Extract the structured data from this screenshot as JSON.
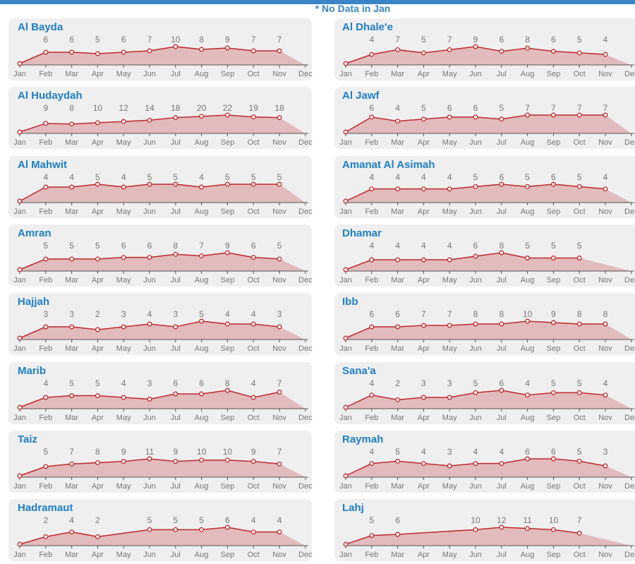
{
  "note": "* No Data in Jan",
  "colors": {
    "title": "#1f7fc8",
    "line": "#c0282c",
    "area": "#dfb2b4",
    "marker_fill": "#ffffff",
    "panel": "#efefef",
    "axis": "#555555"
  },
  "chart_data": [
    {
      "type": "area",
      "title": "Al Bayda",
      "categories": [
        "Jan",
        "Feb",
        "Mar",
        "Apr",
        "May",
        "Jun",
        "Jul",
        "Aug",
        "Sep",
        "Oct",
        "Nov",
        "Dec"
      ],
      "values": [
        null,
        6,
        6,
        5,
        6,
        7,
        10,
        8,
        9,
        7,
        7,
        null
      ]
    },
    {
      "type": "area",
      "title": "Al Dhale'e",
      "categories": [
        "Jan",
        "Feb",
        "Mar",
        "Apr",
        "May",
        "Jun",
        "Jul",
        "Aug",
        "Sep",
        "Oct",
        "Nov",
        "Dec"
      ],
      "values": [
        null,
        4,
        7,
        5,
        7,
        9,
        6,
        8,
        6,
        5,
        4,
        null
      ]
    },
    {
      "type": "area",
      "title": "Al Hudaydah",
      "categories": [
        "Jan",
        "Feb",
        "Mar",
        "Apr",
        "May",
        "Jun",
        "Jul",
        "Aug",
        "Sep",
        "Oct",
        "Nov",
        "Dec"
      ],
      "values": [
        null,
        9,
        8,
        10,
        12,
        14,
        18,
        20,
        22,
        19,
        18,
        null
      ]
    },
    {
      "type": "area",
      "title": "Al Jawf",
      "categories": [
        "Jan",
        "Feb",
        "Mar",
        "Apr",
        "May",
        "Jun",
        "Jul",
        "Aug",
        "Sep",
        "Oct",
        "Nov",
        "Dec"
      ],
      "values": [
        null,
        6,
        4,
        5,
        6,
        6,
        5,
        7,
        7,
        7,
        7,
        null
      ]
    },
    {
      "type": "area",
      "title": "Al Mahwit",
      "categories": [
        "Jan",
        "Feb",
        "Mar",
        "Apr",
        "May",
        "Jun",
        "Jul",
        "Aug",
        "Sep",
        "Oct",
        "Nov",
        "Dec"
      ],
      "values": [
        null,
        4,
        4,
        5,
        4,
        5,
        5,
        4,
        5,
        5,
        5,
        null
      ]
    },
    {
      "type": "area",
      "title": "Amanat Al Asimah",
      "categories": [
        "Jan",
        "Feb",
        "Mar",
        "Apr",
        "May",
        "Jun",
        "Jul",
        "Aug",
        "Sep",
        "Oct",
        "Nov",
        "Dec"
      ],
      "values": [
        null,
        4,
        4,
        4,
        4,
        5,
        6,
        5,
        6,
        5,
        4,
        null
      ]
    },
    {
      "type": "area",
      "title": "Amran",
      "categories": [
        "Jan",
        "Feb",
        "Mar",
        "Apr",
        "May",
        "Jun",
        "Jul",
        "Aug",
        "Sep",
        "Oct",
        "Nov",
        "Dec"
      ],
      "values": [
        null,
        5,
        5,
        5,
        6,
        6,
        8,
        7,
        9,
        6,
        5,
        null
      ]
    },
    {
      "type": "area",
      "title": "Dhamar",
      "categories": [
        "Jan",
        "Feb",
        "Mar",
        "Apr",
        "May",
        "Jun",
        "Jul",
        "Aug",
        "Sep",
        "Oct",
        "Nov",
        "Dec"
      ],
      "values": [
        null,
        4,
        4,
        4,
        4,
        6,
        8,
        5,
        5,
        5,
        null,
        null
      ]
    },
    {
      "type": "area",
      "title": "Hajjah",
      "categories": [
        "Jan",
        "Feb",
        "Mar",
        "Apr",
        "May",
        "Jun",
        "Jul",
        "Aug",
        "Sep",
        "Oct",
        "Nov",
        "Dec"
      ],
      "values": [
        null,
        3,
        3,
        2,
        3,
        4,
        3,
        5,
        4,
        4,
        3,
        null
      ]
    },
    {
      "type": "area",
      "title": "Ibb",
      "categories": [
        "Jan",
        "Feb",
        "Mar",
        "Apr",
        "May",
        "Jun",
        "Jul",
        "Aug",
        "Sep",
        "Oct",
        "Nov",
        "Dec"
      ],
      "values": [
        null,
        6,
        6,
        7,
        7,
        8,
        8,
        10,
        9,
        8,
        8,
        null
      ]
    },
    {
      "type": "area",
      "title": "Marib",
      "categories": [
        "Jan",
        "Feb",
        "Mar",
        "Apr",
        "May",
        "Jun",
        "Jul",
        "Aug",
        "Sep",
        "Oct",
        "Nov",
        "Dec"
      ],
      "values": [
        null,
        4,
        5,
        5,
        4,
        3,
        6,
        6,
        8,
        4,
        7,
        null
      ]
    },
    {
      "type": "area",
      "title": "Sana'a",
      "categories": [
        "Jan",
        "Feb",
        "Mar",
        "Apr",
        "May",
        "Jun",
        "Jul",
        "Aug",
        "Sep",
        "Oct",
        "Nov",
        "Dec"
      ],
      "values": [
        null,
        4,
        2,
        3,
        3,
        5,
        6,
        4,
        5,
        5,
        4,
        null
      ]
    },
    {
      "type": "area",
      "title": "Taiz",
      "categories": [
        "Jan",
        "Feb",
        "Mar",
        "Apr",
        "May",
        "Jun",
        "Jul",
        "Aug",
        "Sep",
        "Oct",
        "Nov",
        "Dec"
      ],
      "values": [
        null,
        5,
        7,
        8,
        9,
        11,
        9,
        10,
        10,
        9,
        7,
        null
      ]
    },
    {
      "type": "area",
      "title": "Raymah",
      "categories": [
        "Jan",
        "Feb",
        "Mar",
        "Apr",
        "May",
        "Jun",
        "Jul",
        "Aug",
        "Sep",
        "Oct",
        "Nov",
        "Dec"
      ],
      "values": [
        null,
        4,
        5,
        4,
        3,
        4,
        4,
        6,
        6,
        5,
        3,
        null
      ]
    },
    {
      "type": "area",
      "title": "Hadramaut",
      "categories": [
        "Jan",
        "Feb",
        "Mar",
        "Apr",
        "May",
        "Jun",
        "Jul",
        "Aug",
        "Sep",
        "Oct",
        "Nov",
        "Dec"
      ],
      "values": [
        null,
        2,
        4,
        2,
        null,
        5,
        5,
        5,
        6,
        4,
        4,
        null
      ]
    },
    {
      "type": "area",
      "title": "Lahj",
      "categories": [
        "Jan",
        "Feb",
        "Mar",
        "Apr",
        "May",
        "Jun",
        "Jul",
        "Aug",
        "Sep",
        "Oct",
        "Nov",
        "Dec"
      ],
      "values": [
        null,
        5,
        6,
        null,
        null,
        10,
        12,
        11,
        10,
        7,
        null,
        null
      ]
    }
  ]
}
